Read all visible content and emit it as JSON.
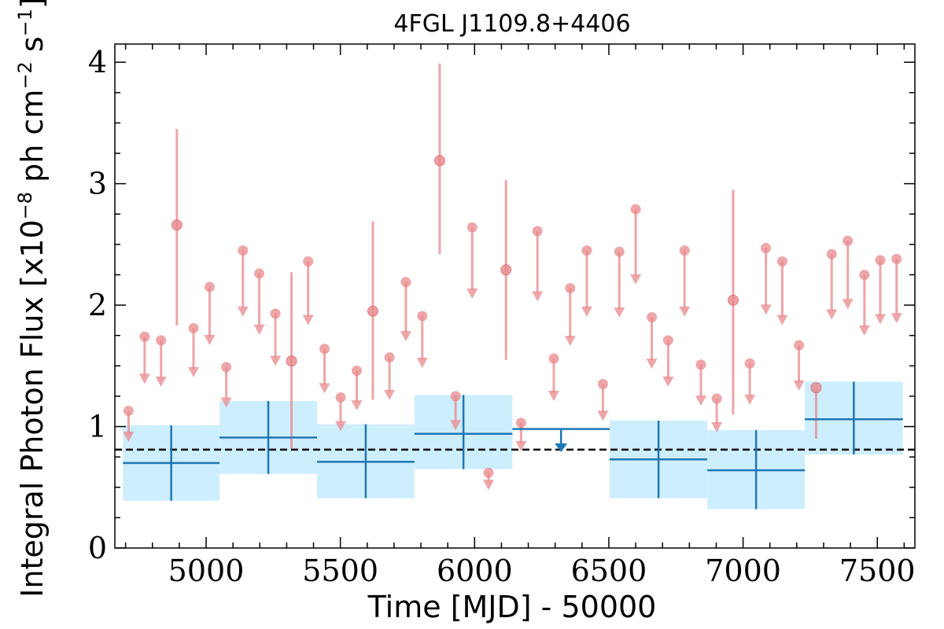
{
  "chart_data": {
    "type": "scatter",
    "title": "4FGL J1109.8+4406",
    "xlabel": "Time [MJD] - 50000",
    "ylabel_parts": [
      "Integral Photon Flux [x10",
      "−8",
      " ph cm",
      "−2",
      " s",
      "−1",
      "]"
    ],
    "xlim": [
      4660,
      7640
    ],
    "ylim": [
      0,
      4.15
    ],
    "x_ticks": [
      5000,
      5500,
      6000,
      6500,
      7000,
      7500
    ],
    "x_tick_labels": [
      "5000",
      "5500",
      "6000",
      "6500",
      "7000",
      "7500"
    ],
    "y_ticks": [
      0,
      1,
      2,
      3,
      4
    ],
    "y_tick_labels": [
      "0",
      "1",
      "2",
      "3",
      "4"
    ],
    "mean_flux": 0.81,
    "colors": {
      "short": "#e8888c",
      "long": "#1f77b4",
      "band": "#cdeefc",
      "mean": "#000000"
    },
    "short_bin_detections": [
      {
        "x": 4891,
        "y": 2.66,
        "lo": 1.83,
        "hi": 3.45
      },
      {
        "x": 5318,
        "y": 1.54,
        "lo": 0.82,
        "hi": 2.27
      },
      {
        "x": 5621,
        "y": 1.95,
        "lo": 1.22,
        "hi": 2.69
      },
      {
        "x": 5870,
        "y": 3.19,
        "lo": 2.42,
        "hi": 3.99
      },
      {
        "x": 6117,
        "y": 2.29,
        "lo": 1.55,
        "hi": 3.03
      },
      {
        "x": 6963,
        "y": 2.04,
        "lo": 1.1,
        "hi": 2.95
      },
      {
        "x": 7272,
        "y": 1.32,
        "lo": 0.9,
        "hi": 1.32
      }
    ],
    "short_bin_upper_limits": [
      {
        "x": 4711,
        "y": 1.13
      },
      {
        "x": 4771,
        "y": 1.74
      },
      {
        "x": 4832,
        "y": 1.71
      },
      {
        "x": 4953,
        "y": 1.81
      },
      {
        "x": 5013,
        "y": 2.15
      },
      {
        "x": 5075,
        "y": 1.49
      },
      {
        "x": 5137,
        "y": 2.45
      },
      {
        "x": 5198,
        "y": 2.26
      },
      {
        "x": 5258,
        "y": 1.93
      },
      {
        "x": 5380,
        "y": 2.36
      },
      {
        "x": 5441,
        "y": 1.64
      },
      {
        "x": 5501,
        "y": 1.24
      },
      {
        "x": 5561,
        "y": 1.46
      },
      {
        "x": 5683,
        "y": 1.57
      },
      {
        "x": 5744,
        "y": 2.19
      },
      {
        "x": 5805,
        "y": 1.91
      },
      {
        "x": 5929,
        "y": 1.25
      },
      {
        "x": 5991,
        "y": 2.64
      },
      {
        "x": 6052,
        "y": 0.62
      },
      {
        "x": 6173,
        "y": 1.03
      },
      {
        "x": 6234,
        "y": 2.61
      },
      {
        "x": 6295,
        "y": 1.56
      },
      {
        "x": 6356,
        "y": 2.14
      },
      {
        "x": 6418,
        "y": 2.45
      },
      {
        "x": 6478,
        "y": 1.35
      },
      {
        "x": 6539,
        "y": 2.44
      },
      {
        "x": 6600,
        "y": 2.79
      },
      {
        "x": 6660,
        "y": 1.9
      },
      {
        "x": 6721,
        "y": 1.71
      },
      {
        "x": 6782,
        "y": 2.45
      },
      {
        "x": 6843,
        "y": 1.51
      },
      {
        "x": 6902,
        "y": 1.23
      },
      {
        "x": 7025,
        "y": 1.52
      },
      {
        "x": 7085,
        "y": 2.47
      },
      {
        "x": 7146,
        "y": 2.36
      },
      {
        "x": 7208,
        "y": 1.67
      },
      {
        "x": 7330,
        "y": 2.42
      },
      {
        "x": 7390,
        "y": 2.53
      },
      {
        "x": 7452,
        "y": 2.25
      },
      {
        "x": 7511,
        "y": 2.37
      },
      {
        "x": 7572,
        "y": 2.38
      }
    ],
    "long_bins": [
      {
        "x0": 4690,
        "x1": 5050,
        "y": 0.7,
        "lo": 0.39,
        "hi": 1.01
      },
      {
        "x0": 5050,
        "x1": 5413,
        "y": 0.91,
        "lo": 0.61,
        "hi": 1.21
      },
      {
        "x0": 5413,
        "x1": 5776,
        "y": 0.71,
        "lo": 0.41,
        "hi": 1.02
      },
      {
        "x0": 5776,
        "x1": 6141,
        "y": 0.94,
        "lo": 0.65,
        "hi": 1.26
      },
      {
        "x0": 6141,
        "x1": 6503,
        "y": 0.98,
        "upper_limit": true
      },
      {
        "x0": 6503,
        "x1": 6867,
        "y": 0.73,
        "lo": 0.41,
        "hi": 1.05
      },
      {
        "x0": 6867,
        "x1": 7230,
        "y": 0.64,
        "lo": 0.32,
        "hi": 0.97
      },
      {
        "x0": 7230,
        "x1": 7595,
        "y": 1.06,
        "lo": 0.77,
        "hi": 1.37
      }
    ]
  }
}
